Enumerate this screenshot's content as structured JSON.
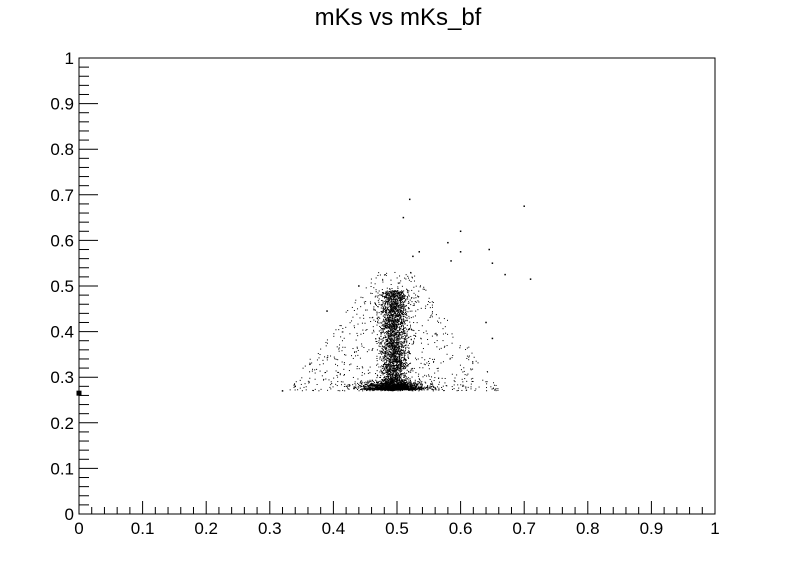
{
  "chart_data": {
    "type": "scatter",
    "title": "mKs vs mKs_bf",
    "xlabel": "",
    "ylabel": "",
    "xlim": [
      0,
      1
    ],
    "ylim": [
      0,
      1
    ],
    "x_ticks": [
      "0",
      "0.1",
      "0.2",
      "0.3",
      "0.4",
      "0.5",
      "0.6",
      "0.7",
      "0.8",
      "0.9",
      "1"
    ],
    "y_ticks": [
      "0",
      "0.1",
      "0.2",
      "0.3",
      "0.4",
      "0.5",
      "0.6",
      "0.7",
      "0.8",
      "0.9",
      "1"
    ],
    "grid": false,
    "legend": "none",
    "point_color": "#000000",
    "distribution": {
      "dense_column": {
        "x_center": 0.495,
        "x_halfwidth": 0.02,
        "y_min": 0.27,
        "y_max": 0.49
      },
      "dense_band": {
        "y": 0.275,
        "x_min": 0.43,
        "x_max": 0.57
      },
      "sparse_spread": {
        "x_min": 0.32,
        "x_max": 0.66,
        "y_min": 0.27,
        "y_max": 0.53
      }
    },
    "highlighted_points": [
      {
        "x": 0.0,
        "y": 0.265
      },
      {
        "x": 0.52,
        "y": 0.69
      },
      {
        "x": 0.7,
        "y": 0.675
      },
      {
        "x": 0.51,
        "y": 0.65
      },
      {
        "x": 0.6,
        "y": 0.62
      },
      {
        "x": 0.58,
        "y": 0.595
      },
      {
        "x": 0.645,
        "y": 0.58
      },
      {
        "x": 0.6,
        "y": 0.575
      },
      {
        "x": 0.535,
        "y": 0.575
      },
      {
        "x": 0.585,
        "y": 0.555
      },
      {
        "x": 0.65,
        "y": 0.55
      },
      {
        "x": 0.525,
        "y": 0.565
      },
      {
        "x": 0.67,
        "y": 0.525
      },
      {
        "x": 0.71,
        "y": 0.515
      },
      {
        "x": 0.44,
        "y": 0.5
      },
      {
        "x": 0.39,
        "y": 0.445
      },
      {
        "x": 0.32,
        "y": 0.27
      },
      {
        "x": 0.34,
        "y": 0.28
      },
      {
        "x": 0.65,
        "y": 0.385
      },
      {
        "x": 0.64,
        "y": 0.42
      }
    ]
  }
}
